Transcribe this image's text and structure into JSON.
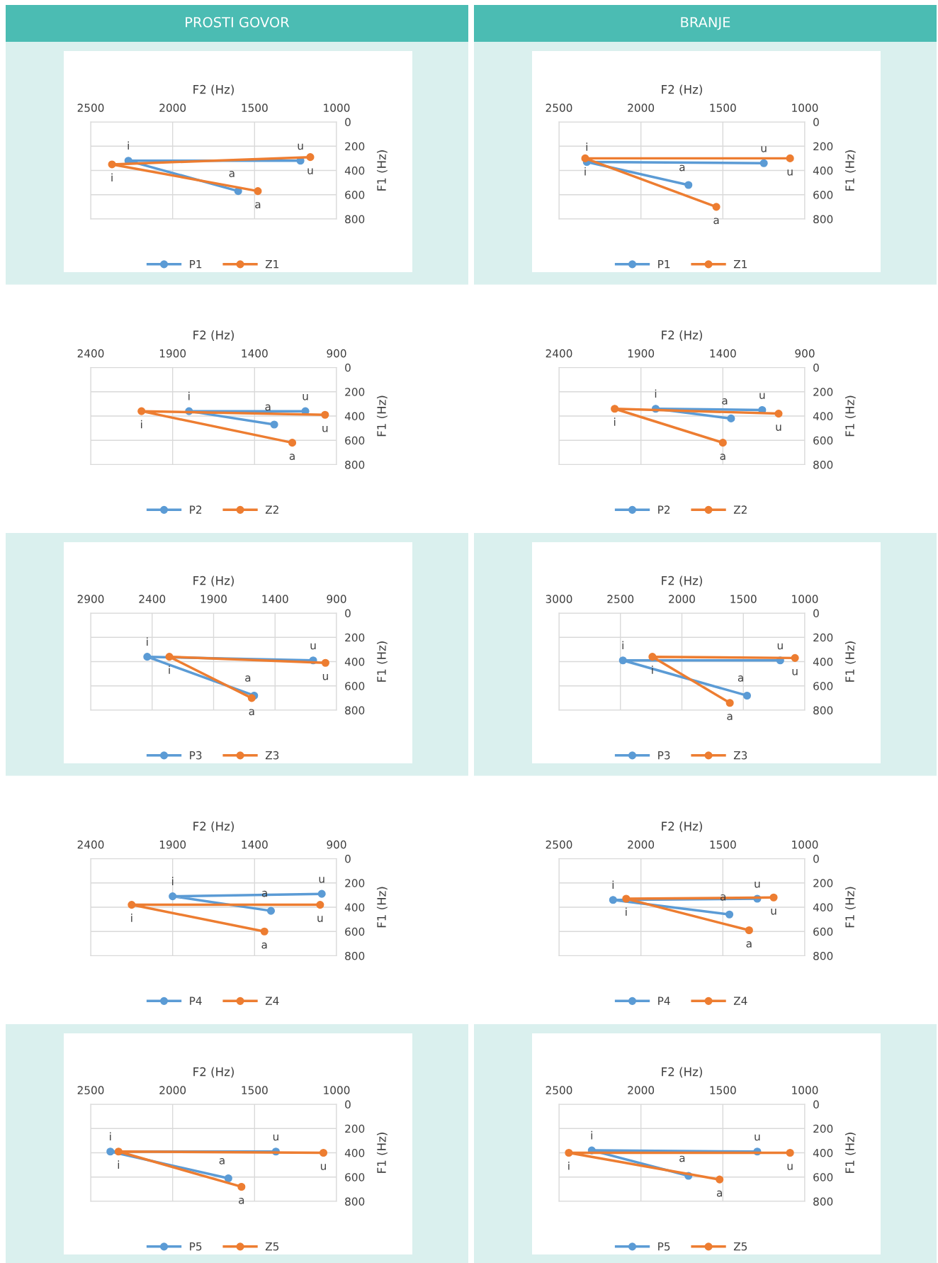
{
  "chart_data": [
    {
      "type": "line",
      "title": "PROSTI GOVOR",
      "xlabel": "F2 (Hz)",
      "ylabel": "F1 (Hz)",
      "xlim": [
        2500,
        1000
      ],
      "xticks": [
        2500,
        2000,
        1500,
        1000
      ],
      "ylim": [
        800,
        0
      ],
      "yticks": [
        0,
        200,
        400,
        600,
        800
      ],
      "grid": true,
      "legend": "bottom",
      "marker": "circle",
      "line_style": "solid",
      "series": [
        {
          "name": "P1",
          "color": "#5b9bd5",
          "x": [
            1220,
            2270,
            1600
          ],
          "values": [
            320,
            320,
            570
          ],
          "value_labels": [
            "u",
            "i",
            "a"
          ]
        },
        {
          "name": "Z1",
          "color": "#ed7d31",
          "x": [
            1160,
            2370,
            1480
          ],
          "values": [
            290,
            350,
            570
          ],
          "value_labels": [
            "u",
            "i",
            "a"
          ]
        }
      ]
    },
    {
      "type": "line",
      "title": "BRANJE",
      "xlabel": "F2 (Hz)",
      "ylabel": "F1 (Hz)",
      "xlim": [
        2500,
        1000
      ],
      "xticks": [
        2500,
        2000,
        1500,
        1000
      ],
      "ylim": [
        800,
        0
      ],
      "yticks": [
        0,
        200,
        400,
        600,
        800
      ],
      "grid": true,
      "legend": "bottom",
      "marker": "circle",
      "line_style": "solid",
      "series": [
        {
          "name": "P1",
          "color": "#5b9bd5",
          "x": [
            1250,
            2330,
            1710
          ],
          "values": [
            340,
            330,
            520
          ],
          "value_labels": [
            "u",
            "i",
            "a"
          ]
        },
        {
          "name": "Z1",
          "color": "#ed7d31",
          "x": [
            1090,
            2340,
            1540
          ],
          "values": [
            300,
            300,
            700
          ],
          "value_labels": [
            "u",
            "i",
            "a"
          ]
        }
      ]
    },
    {
      "type": "line",
      "xlabel": "F2 (Hz)",
      "ylabel": "F1 (Hz)",
      "xlim": [
        2400,
        900
      ],
      "xticks": [
        2400,
        1900,
        1400,
        900
      ],
      "ylim": [
        800,
        0
      ],
      "yticks": [
        0,
        200,
        400,
        600,
        800
      ],
      "grid": true,
      "legend": "bottom",
      "marker": "circle",
      "line_style": "solid",
      "series": [
        {
          "name": "P2",
          "color": "#5b9bd5",
          "x": [
            1090,
            1800,
            1280
          ],
          "values": [
            360,
            360,
            470
          ],
          "value_labels": [
            "u",
            "i",
            "a"
          ]
        },
        {
          "name": "Z2",
          "color": "#ed7d31",
          "x": [
            970,
            2090,
            1170
          ],
          "values": [
            390,
            360,
            620
          ],
          "value_labels": [
            "u",
            "i",
            "a"
          ]
        }
      ]
    },
    {
      "type": "line",
      "xlabel": "F2 (Hz)",
      "ylabel": "F1 (Hz)",
      "xlim": [
        2400,
        900
      ],
      "xticks": [
        2400,
        1900,
        1400,
        900
      ],
      "ylim": [
        800,
        0
      ],
      "yticks": [
        0,
        200,
        400,
        600,
        800
      ],
      "grid": true,
      "legend": "bottom",
      "marker": "circle",
      "line_style": "solid",
      "series": [
        {
          "name": "P2",
          "color": "#5b9bd5",
          "x": [
            1160,
            1810,
            1350
          ],
          "values": [
            350,
            340,
            420
          ],
          "value_labels": [
            "u",
            "i",
            "a"
          ]
        },
        {
          "name": "Z2",
          "color": "#ed7d31",
          "x": [
            1060,
            2060,
            1400
          ],
          "values": [
            380,
            340,
            620
          ],
          "value_labels": [
            "u",
            "i",
            "a"
          ]
        }
      ]
    },
    {
      "type": "line",
      "xlabel": "F2 (Hz)",
      "ylabel": "F1 (Hz)",
      "xlim": [
        2900,
        900
      ],
      "xticks": [
        2900,
        2400,
        1900,
        1400,
        900
      ],
      "ylim": [
        800,
        0
      ],
      "yticks": [
        0,
        200,
        400,
        600,
        800
      ],
      "grid": true,
      "legend": "bottom",
      "marker": "circle",
      "line_style": "solid",
      "series": [
        {
          "name": "P3",
          "color": "#5b9bd5",
          "x": [
            1090,
            2440,
            1570
          ],
          "values": [
            390,
            360,
            680
          ],
          "value_labels": [
            "u",
            "i",
            "a"
          ]
        },
        {
          "name": "Z3",
          "color": "#ed7d31",
          "x": [
            990,
            2260,
            1590
          ],
          "values": [
            410,
            360,
            700
          ],
          "value_labels": [
            "u",
            "i",
            "a"
          ]
        }
      ]
    },
    {
      "type": "line",
      "xlabel": "F2 (Hz)",
      "ylabel": "F1 (Hz)",
      "xlim": [
        3000,
        1000
      ],
      "xticks": [
        3000,
        2500,
        2000,
        1500,
        1000
      ],
      "ylim": [
        800,
        0
      ],
      "yticks": [
        0,
        200,
        400,
        600,
        800
      ],
      "grid": true,
      "legend": "bottom",
      "marker": "circle",
      "line_style": "solid",
      "series": [
        {
          "name": "P3",
          "color": "#5b9bd5",
          "x": [
            1200,
            2480,
            1470
          ],
          "values": [
            390,
            390,
            680
          ],
          "value_labels": [
            "u",
            "i",
            "a"
          ]
        },
        {
          "name": "Z3",
          "color": "#ed7d31",
          "x": [
            1080,
            2240,
            1610
          ],
          "values": [
            370,
            360,
            740
          ],
          "value_labels": [
            "u",
            "i",
            "a"
          ]
        }
      ]
    },
    {
      "type": "line",
      "xlabel": "F2 (Hz)",
      "ylabel": "F1 (Hz)",
      "xlim": [
        2400,
        900
      ],
      "xticks": [
        2400,
        1900,
        1400,
        900
      ],
      "ylim": [
        800,
        0
      ],
      "yticks": [
        0,
        200,
        400,
        600,
        800
      ],
      "grid": true,
      "legend": "bottom",
      "marker": "circle",
      "line_style": "solid",
      "series": [
        {
          "name": "P4",
          "color": "#5b9bd5",
          "x": [
            990,
            1900,
            1300
          ],
          "values": [
            290,
            310,
            430
          ],
          "value_labels": [
            "u",
            "i",
            "a"
          ]
        },
        {
          "name": "Z4",
          "color": "#ed7d31",
          "x": [
            1000,
            2150,
            1340
          ],
          "values": [
            380,
            380,
            600
          ],
          "value_labels": [
            "u",
            "i",
            "a"
          ]
        }
      ]
    },
    {
      "type": "line",
      "xlabel": "F2 (Hz)",
      "ylabel": "F1 (Hz)",
      "xlim": [
        2500,
        1000
      ],
      "xticks": [
        2500,
        2000,
        1500,
        1000
      ],
      "ylim": [
        800,
        0
      ],
      "yticks": [
        0,
        200,
        400,
        600,
        800
      ],
      "grid": true,
      "legend": "bottom",
      "marker": "circle",
      "line_style": "solid",
      "series": [
        {
          "name": "P4",
          "color": "#5b9bd5",
          "x": [
            1290,
            2170,
            1460
          ],
          "values": [
            330,
            340,
            460
          ],
          "value_labels": [
            "u",
            "i",
            "a"
          ]
        },
        {
          "name": "Z4",
          "color": "#ed7d31",
          "x": [
            1190,
            2090,
            1340
          ],
          "values": [
            320,
            330,
            590
          ],
          "value_labels": [
            "u",
            "i",
            "a"
          ]
        }
      ]
    },
    {
      "type": "line",
      "xlabel": "F2 (Hz)",
      "ylabel": "F1 (Hz)",
      "xlim": [
        2500,
        1000
      ],
      "xticks": [
        2500,
        2000,
        1500,
        1000
      ],
      "ylim": [
        800,
        0
      ],
      "yticks": [
        0,
        200,
        400,
        600,
        800
      ],
      "grid": true,
      "legend": "bottom",
      "marker": "circle",
      "line_style": "solid",
      "series": [
        {
          "name": "P5",
          "color": "#5b9bd5",
          "x": [
            1370,
            2380,
            1660
          ],
          "values": [
            390,
            390,
            610
          ],
          "value_labels": [
            "u",
            "i",
            "a"
          ]
        },
        {
          "name": "Z5",
          "color": "#ed7d31",
          "x": [
            1080,
            2330,
            1580
          ],
          "values": [
            400,
            390,
            680
          ],
          "value_labels": [
            "u",
            "i",
            "a"
          ]
        }
      ]
    },
    {
      "type": "line",
      "xlabel": "F2 (Hz)",
      "ylabel": "F1 (Hz)",
      "xlim": [
        2500,
        1000
      ],
      "xticks": [
        2500,
        2000,
        1500,
        1000
      ],
      "ylim": [
        800,
        0
      ],
      "yticks": [
        0,
        200,
        400,
        600,
        800
      ],
      "grid": true,
      "legend": "bottom",
      "marker": "circle",
      "line_style": "solid",
      "series": [
        {
          "name": "P5",
          "color": "#5b9bd5",
          "x": [
            1290,
            2300,
            1710
          ],
          "values": [
            390,
            380,
            590
          ],
          "value_labels": [
            "u",
            "i",
            "a"
          ]
        },
        {
          "name": "Z5",
          "color": "#ed7d31",
          "x": [
            1090,
            2440,
            1520
          ],
          "values": [
            400,
            400,
            620
          ],
          "value_labels": [
            "u",
            "i",
            "a"
          ]
        }
      ]
    }
  ]
}
